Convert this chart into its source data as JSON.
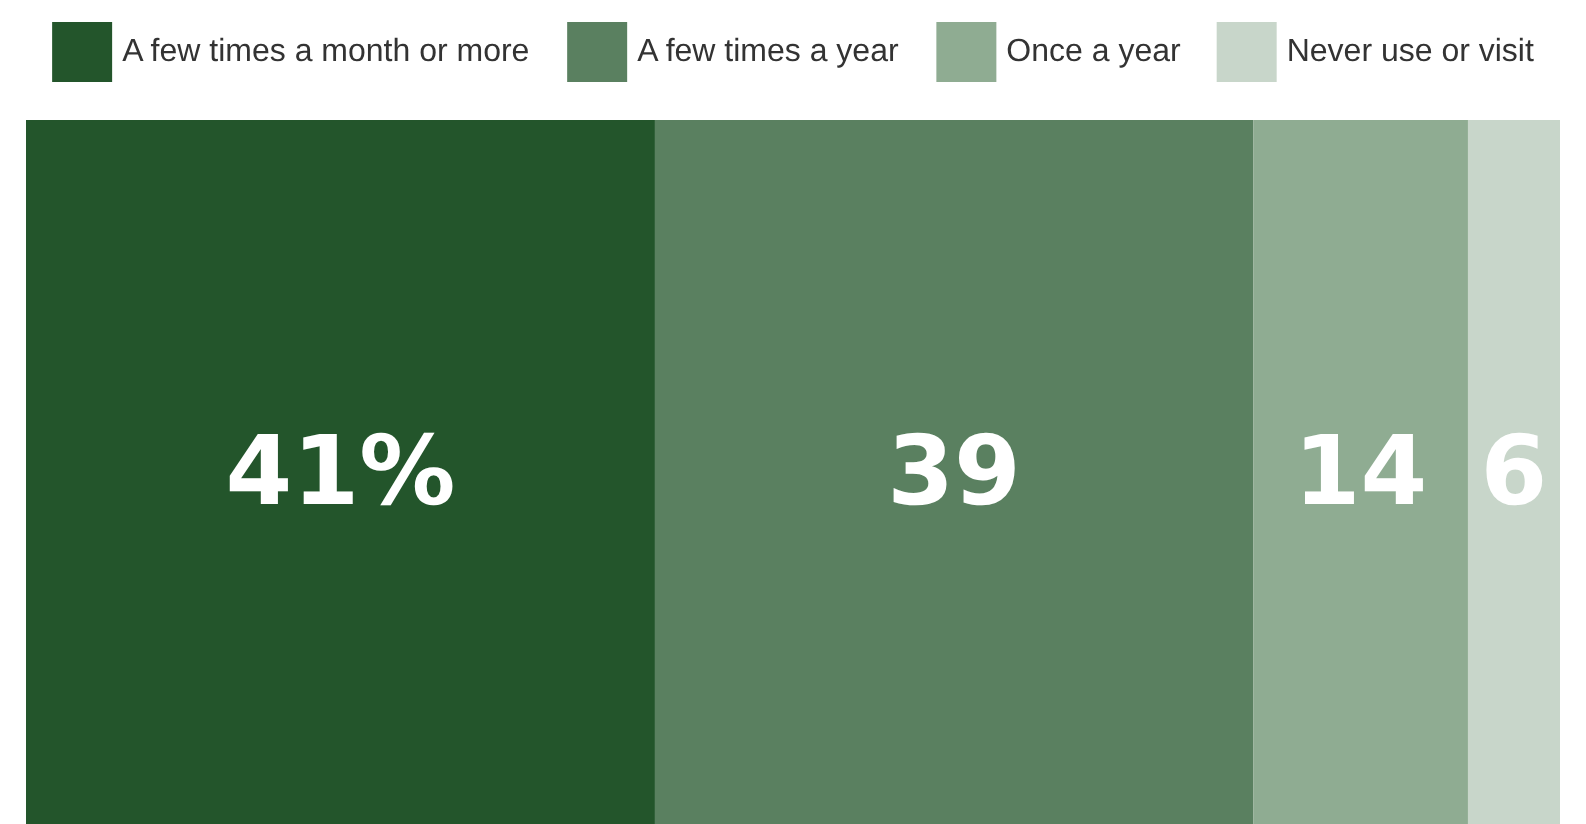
{
  "chart_data": {
    "type": "bar",
    "orientation": "horizontal",
    "stacked": true,
    "categories": [
      null
    ],
    "series": [
      {
        "name": "A few times a month or more",
        "color": "#23552b",
        "values": [
          41
        ],
        "value_labels": [
          "41%"
        ]
      },
      {
        "name": "A few times a year",
        "color": "#5a8060",
        "values": [
          39
        ],
        "value_labels": [
          "39"
        ]
      },
      {
        "name": "Once a year",
        "color": "#8fac92",
        "values": [
          14
        ],
        "value_labels": [
          "14"
        ]
      },
      {
        "name": "Never use or visit",
        "color": "#c8d6ca",
        "values": [
          6
        ],
        "value_labels": [
          "6"
        ]
      }
    ],
    "legend": "top",
    "tick_labels": false
  }
}
